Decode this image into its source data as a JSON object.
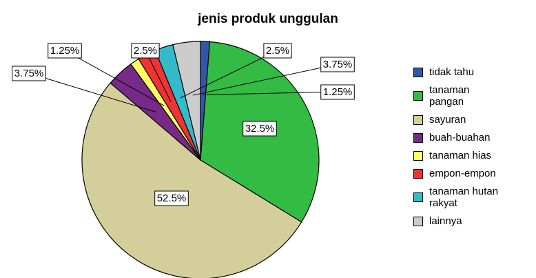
{
  "chart_data": {
    "type": "pie",
    "title": "jenis produk unggulan",
    "categories": [
      "tidak tahu",
      "tanaman pangan",
      "sayuran",
      "buah-buahan",
      "tanaman hias",
      "empon-empon",
      "tanaman hutan rakyat",
      "lainnya"
    ],
    "values": [
      1.25,
      32.5,
      52.5,
      3.75,
      1.25,
      2.5,
      2.5,
      3.75
    ],
    "value_labels": [
      "1.25%",
      "32.5%",
      "52.5%",
      "3.75%",
      "1.25%",
      "2.5%",
      "2.5%",
      "3.75%"
    ],
    "colors": [
      "#3355aa",
      "#33bb44",
      "#d4cf9a",
      "#772a88",
      "#ffff66",
      "#ee3333",
      "#33bbcc",
      "#cccccc"
    ],
    "legend": "right"
  }
}
